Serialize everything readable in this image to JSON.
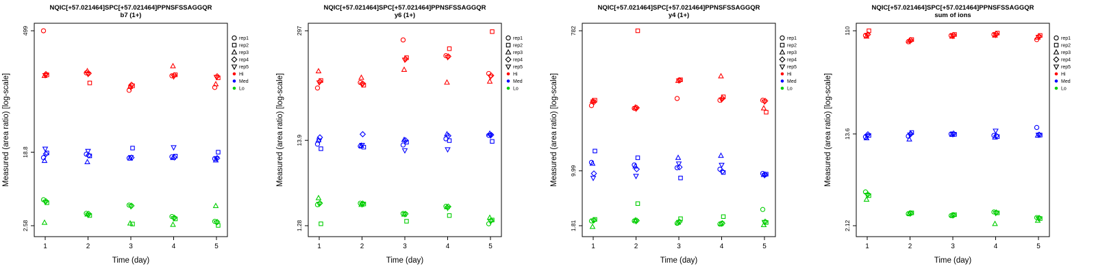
{
  "chart_data": {
    "type": "scatter",
    "xlabel": "Time (day)",
    "ylabel": "Measured (area ratio) [log-scale]",
    "x": [
      1,
      2,
      3,
      4,
      5
    ],
    "x_tick_labels": [
      "1",
      "2",
      "3",
      "4",
      "5"
    ],
    "legend_position": "right",
    "grid": false,
    "levels": [
      {
        "name": "Hi",
        "color": "#ff0000"
      },
      {
        "name": "Med",
        "color": "#0000ff"
      },
      {
        "name": "Lo",
        "color": "#00cd00"
      }
    ],
    "reps": [
      {
        "name": "rep1",
        "marker": "circle"
      },
      {
        "name": "rep2",
        "marker": "square"
      },
      {
        "name": "rep3",
        "marker": "triangle-up"
      },
      {
        "name": "rep4",
        "marker": "diamond"
      },
      {
        "name": "rep5",
        "marker": "triangle-down"
      }
    ],
    "legend_items": [
      "rep1",
      "rep2",
      "rep3",
      "rep4",
      "rep5",
      "Hi",
      "Med",
      "Lo"
    ],
    "plots": [
      {
        "title": "NQIC[+57.021464]SPC[+57.021464]PPNSFSSAGGQR",
        "subtitle": "b7 (1+)",
        "yticks": [
          2.58,
          18.8,
          499
        ],
        "ytick_labels": [
          "2.58",
          "18.8",
          "499"
        ],
        "series": {
          "Hi": {
            "rep1": [
              499,
              160,
              100,
              148,
              108
            ],
            "rep2": [
              152,
              122,
              113,
              152,
              140
            ],
            "rep3": [
              148,
              168,
              110,
              192,
              118
            ],
            "rep4": [
              155,
              158,
              116,
              150,
              146
            ],
            "rep5": [
              150,
              155,
              108,
              145,
              143
            ]
          },
          "Med": {
            "rep1": [
              16.2,
              17.8,
              16.0,
              16.6,
              15.8
            ],
            "rep2": [
              18.4,
              17.0,
              21.0,
              16.9,
              18.8
            ],
            "rep3": [
              14.9,
              14.4,
              15.9,
              16.1,
              15.1
            ],
            "rep4": [
              17.9,
              17.3,
              16.2,
              16.3,
              16.0
            ],
            "rep5": [
              20.6,
              19.4,
              16.4,
              21.4,
              15.9
            ]
          },
          "Lo": {
            "rep1": [
              5.2,
              3.6,
              4.5,
              3.3,
              2.9
            ],
            "rep2": [
              4.8,
              3.4,
              2.7,
              3.1,
              2.6
            ],
            "rep3": [
              2.8,
              3.5,
              2.75,
              2.65,
              4.4
            ],
            "rep4": [
              5.0,
              3.55,
              4.42,
              3.2,
              2.85
            ],
            "rep5": [
              4.9,
              3.45,
              4.35,
              3.15,
              2.8
            ]
          }
        }
      },
      {
        "title": "NQIC[+57.021464]SPC[+57.021464]PPNSFSSAGGQR",
        "subtitle": "y6 (1+)",
        "yticks": [
          1.28,
          13.9,
          297
        ],
        "ytick_labels": [
          "1.28",
          "13.9",
          "297"
        ],
        "series": {
          "Hi": {
            "rep1": [
              60,
              70,
              230,
              148,
              90
            ],
            "rep2": [
              74,
              65,
              140,
              180,
              290
            ],
            "rep3": [
              96,
              80,
              100,
              70,
              72
            ],
            "rep4": [
              72,
              68,
              135,
              145,
              85
            ],
            "rep5": [
              70,
              66,
              132,
              142,
              82
            ]
          },
          "Med": {
            "rep1": [
              12.5,
              11.8,
              12.2,
              14.5,
              16.0
            ],
            "rep2": [
              11.0,
              11.5,
              13.2,
              13.8,
              13.5
            ],
            "rep3": [
              14.0,
              12.0,
              14.1,
              16.5,
              16.8
            ],
            "rep4": [
              15.1,
              16.5,
              13.9,
              15.8,
              16.2
            ],
            "rep5": [
              13.8,
              12.2,
              10.5,
              10.8,
              15.9
            ]
          },
          "Lo": {
            "rep1": [
              2.3,
              2.4,
              1.8,
              2.2,
              1.35
            ],
            "rep2": [
              1.35,
              2.35,
              1.45,
              1.7,
              1.5
            ],
            "rep3": [
              2.77,
              2.3,
              1.75,
              2.15,
              1.6
            ],
            "rep4": [
              2.4,
              2.38,
              1.78,
              2.18,
              1.48
            ],
            "rep5": [
              2.35,
              2.32,
              1.76,
              2.1,
              1.45
            ]
          }
        }
      },
      {
        "title": "NQIC[+57.021464]SPC[+57.021464]PPNSFSSAGGQR",
        "subtitle": "y4 (1+)",
        "yticks": [
          1.81,
          9.99,
          782
        ],
        "ytick_labels": [
          "1.81",
          "9.99",
          "782"
        ],
        "series": {
          "Hi": {
            "rep1": [
              76,
              70,
              95,
              90,
              90
            ],
            "rep2": [
              90,
              782,
              170,
              100,
              62
            ],
            "rep3": [
              88,
              72,
              165,
              190,
              70
            ],
            "rep4": [
              85,
              71,
              168,
              95,
              88
            ],
            "rep5": [
              86,
              69,
              166,
              92,
              86
            ]
          },
          "Med": {
            "rep1": [
              13.0,
              12.0,
              11.0,
              10.5,
              9.2
            ],
            "rep2": [
              18.5,
              15.0,
              8.0,
              9.5,
              9.0
            ],
            "rep3": [
              12.5,
              11.5,
              15.0,
              16.0,
              8.8
            ],
            "rep4": [
              9.2,
              10.5,
              11.2,
              9.8,
              8.9
            ],
            "rep5": [
              8.0,
              8.5,
              12.5,
              12.0,
              8.7
            ]
          },
          "Lo": {
            "rep1": [
              2.1,
              2.1,
              1.95,
              1.9,
              3.0
            ],
            "rep2": [
              2.2,
              3.6,
              2.25,
              2.4,
              2.0
            ],
            "rep3": [
              1.75,
              2.15,
              2.0,
              1.92,
              1.85
            ],
            "rep4": [
              2.15,
              2.12,
              2.05,
              1.95,
              2.05
            ],
            "rep5": [
              2.12,
              2.08,
              2.02,
              1.93,
              2.02
            ]
          }
        }
      },
      {
        "title": "NQIC[+57.021464]SPC[+57.021464]PPNSFSSAGGQR",
        "subtitle": "sum of ions",
        "yticks": [
          2.12,
          13.6,
          110
        ],
        "ytick_labels": [
          "2.12",
          "13.6",
          "110"
        ],
        "series": {
          "Hi": {
            "rep1": [
              100,
              88,
              100,
              102,
              92
            ],
            "rep2": [
              110,
              92,
              102,
              105,
              100
            ],
            "rep3": [
              98,
              90,
              98,
              100,
              96
            ],
            "rep4": [
              102,
              91,
              101,
              103,
              98
            ],
            "rep5": [
              101,
              89,
              99,
              101,
              97
            ]
          },
          "Med": {
            "rep1": [
              12.8,
              13.0,
              13.6,
              13.2,
              15.5
            ],
            "rep2": [
              13.2,
              14.0,
              13.5,
              12.9,
              13.3
            ],
            "rep3": [
              12.5,
              12.2,
              13.4,
              12.7,
              13.2
            ],
            "rep4": [
              13.5,
              13.6,
              13.7,
              13.1,
              13.4
            ],
            "rep5": [
              13.0,
              13.4,
              13.5,
              14.5,
              13.35
            ]
          },
          "Lo": {
            "rep1": [
              4.2,
              2.7,
              2.6,
              2.8,
              2.5
            ],
            "rep2": [
              3.9,
              2.75,
              2.65,
              2.75,
              2.45
            ],
            "rep3": [
              3.6,
              2.72,
              2.62,
              2.2,
              2.35
            ],
            "rep4": [
              4.0,
              2.73,
              2.63,
              2.77,
              2.48
            ],
            "rep5": [
              3.95,
              2.71,
              2.61,
              2.74,
              2.46
            ]
          }
        }
      }
    ]
  }
}
